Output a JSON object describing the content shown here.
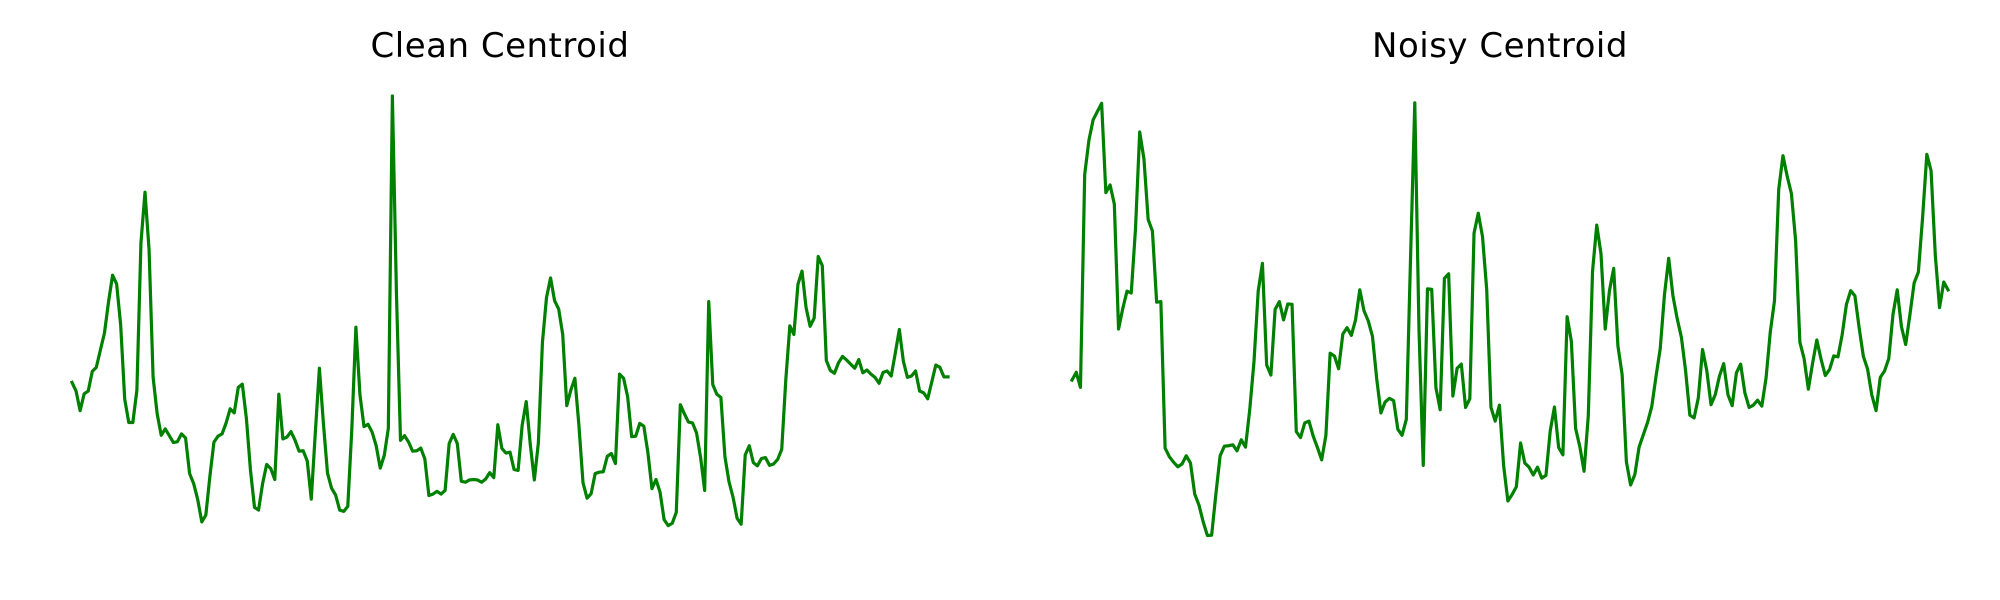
{
  "chart_data": [
    {
      "type": "line",
      "title": "Clean Centroid",
      "color": "#008000",
      "axes_visible": false,
      "grid": false,
      "ylim": [
        0,
        1
      ],
      "values": [
        0.372,
        0.353,
        0.31,
        0.347,
        0.353,
        0.396,
        0.405,
        0.443,
        0.48,
        0.548,
        0.607,
        0.588,
        0.498,
        0.335,
        0.284,
        0.284,
        0.355,
        0.678,
        0.789,
        0.663,
        0.383,
        0.303,
        0.256,
        0.27,
        0.255,
        0.24,
        0.242,
        0.259,
        0.25,
        0.172,
        0.15,
        0.115,
        0.066,
        0.081,
        0.166,
        0.241,
        0.254,
        0.259,
        0.283,
        0.314,
        0.305,
        0.361,
        0.368,
        0.293,
        0.18,
        0.098,
        0.092,
        0.15,
        0.192,
        0.183,
        0.159,
        0.346,
        0.248,
        0.252,
        0.264,
        0.245,
        0.221,
        0.222,
        0.2,
        0.116,
        0.262,
        0.403,
        0.281,
        0.173,
        0.14,
        0.125,
        0.092,
        0.089,
        0.1,
        0.27,
        0.493,
        0.345,
        0.275,
        0.28,
        0.263,
        0.233,
        0.184,
        0.212,
        0.271,
        1.0,
        0.568,
        0.245,
        0.255,
        0.241,
        0.221,
        0.222,
        0.228,
        0.204,
        0.124,
        0.127,
        0.133,
        0.127,
        0.135,
        0.238,
        0.258,
        0.238,
        0.155,
        0.153,
        0.158,
        0.159,
        0.158,
        0.153,
        0.16,
        0.174,
        0.163,
        0.279,
        0.227,
        0.217,
        0.219,
        0.181,
        0.179,
        0.278,
        0.33,
        0.236,
        0.158,
        0.24,
        0.46,
        0.558,
        0.601,
        0.551,
        0.533,
        0.477,
        0.321,
        0.355,
        0.381,
        0.277,
        0.152,
        0.118,
        0.128,
        0.172,
        0.175,
        0.176,
        0.21,
        0.216,
        0.194,
        0.39,
        0.381,
        0.341,
        0.253,
        0.254,
        0.282,
        0.276,
        0.218,
        0.139,
        0.159,
        0.131,
        0.071,
        0.058,
        0.063,
        0.087,
        0.323,
        0.303,
        0.285,
        0.283,
        0.261,
        0.207,
        0.135,
        0.549,
        0.367,
        0.346,
        0.339,
        0.209,
        0.154,
        0.12,
        0.074,
        0.061,
        0.213,
        0.233,
        0.196,
        0.189,
        0.205,
        0.207,
        0.19,
        0.193,
        0.203,
        0.225,
        0.377,
        0.496,
        0.477,
        0.587,
        0.616,
        0.536,
        0.495,
        0.513,
        0.648,
        0.628,
        0.42,
        0.398,
        0.392,
        0.415,
        0.429,
        0.421,
        0.412,
        0.403,
        0.422,
        0.393,
        0.399,
        0.39,
        0.383,
        0.37,
        0.394,
        0.397,
        0.386,
        0.436,
        0.488,
        0.418,
        0.383,
        0.386,
        0.397,
        0.353,
        0.349,
        0.336,
        0.373,
        0.41,
        0.405,
        0.384,
        0.384
      ]
    },
    {
      "type": "line",
      "title": "Noisy Centroid",
      "color": "#008000",
      "axes_visible": false,
      "grid": false,
      "ylim": [
        0,
        1
      ],
      "values": [
        0.377,
        0.394,
        0.361,
        0.828,
        0.903,
        0.948,
        0.966,
        0.984,
        0.788,
        0.805,
        0.763,
        0.489,
        0.534,
        0.572,
        0.568,
        0.708,
        0.921,
        0.862,
        0.729,
        0.704,
        0.548,
        0.549,
        0.228,
        0.209,
        0.197,
        0.187,
        0.193,
        0.211,
        0.195,
        0.127,
        0.103,
        0.066,
        0.036,
        0.037,
        0.127,
        0.211,
        0.232,
        0.233,
        0.235,
        0.222,
        0.246,
        0.23,
        0.312,
        0.417,
        0.572,
        0.633,
        0.41,
        0.388,
        0.532,
        0.549,
        0.509,
        0.544,
        0.543,
        0.264,
        0.251,
        0.283,
        0.287,
        0.254,
        0.229,
        0.202,
        0.256,
        0.436,
        0.43,
        0.402,
        0.478,
        0.492,
        0.475,
        0.509,
        0.575,
        0.529,
        0.507,
        0.473,
        0.38,
        0.305,
        0.329,
        0.337,
        0.332,
        0.269,
        0.256,
        0.291,
        0.645,
        0.985,
        0.486,
        0.19,
        0.577,
        0.576,
        0.36,
        0.312,
        0.6,
        0.61,
        0.342,
        0.403,
        0.412,
        0.317,
        0.336,
        0.699,
        0.743,
        0.692,
        0.575,
        0.317,
        0.287,
        0.322,
        0.189,
        0.112,
        0.126,
        0.143,
        0.239,
        0.195,
        0.186,
        0.169,
        0.186,
        0.162,
        0.168,
        0.265,
        0.318,
        0.229,
        0.213,
        0.516,
        0.462,
        0.271,
        0.231,
        0.177,
        0.299,
        0.615,
        0.717,
        0.654,
        0.489,
        0.573,
        0.622,
        0.452,
        0.389,
        0.198,
        0.147,
        0.17,
        0.23,
        0.257,
        0.284,
        0.319,
        0.385,
        0.446,
        0.564,
        0.644,
        0.562,
        0.512,
        0.471,
        0.397,
        0.3,
        0.294,
        0.338,
        0.444,
        0.398,
        0.323,
        0.345,
        0.386,
        0.413,
        0.345,
        0.321,
        0.393,
        0.412,
        0.349,
        0.317,
        0.322,
        0.333,
        0.32,
        0.381,
        0.482,
        0.551,
        0.795,
        0.869,
        0.824,
        0.786,
        0.682,
        0.46,
        0.424,
        0.357,
        0.414,
        0.465,
        0.423,
        0.387,
        0.4,
        0.43,
        0.428,
        0.477,
        0.543,
        0.573,
        0.562,
        0.492,
        0.429,
        0.401,
        0.344,
        0.31,
        0.383,
        0.397,
        0.424,
        0.521,
        0.575,
        0.494,
        0.455,
        0.52,
        0.59,
        0.614,
        0.734,
        0.872,
        0.836,
        0.651,
        0.536,
        0.592,
        0.575
      ]
    }
  ]
}
